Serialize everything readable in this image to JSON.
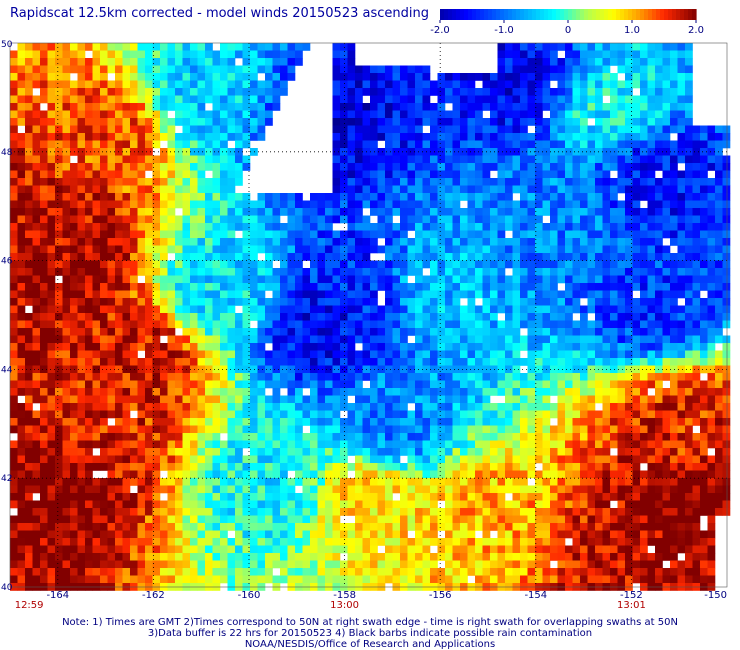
{
  "title": "Rapidscat 12.5km corrected - model winds 20150523 ascending",
  "notes": [
    "Note: 1) Times are GMT 2)Times correspond to 50N at right swath edge - time is right swath for overlapping swaths at 50N",
    "3)Data buffer is 22 hrs for 20150523 4) Black barbs indicate possible rain contamination",
    "NOAA/NESDIS/Office of Research and Applications"
  ],
  "chart_data": {
    "type": "heatmap",
    "title": "Rapidscat 12.5km corrected - model winds 20150523 ascending",
    "xlim": [
      -165,
      -150
    ],
    "ylim": [
      40,
      50
    ],
    "x_ticks": [
      -164,
      -162,
      -160,
      -158,
      -156,
      -154,
      -152,
      -150
    ],
    "x_tick_labels": [
      "-164",
      "-162",
      "-160",
      "-158",
      "-156",
      "-154",
      "-152",
      "-150"
    ],
    "y_ticks": [
      40,
      42,
      44,
      46,
      48,
      50
    ],
    "y_tick_labels": [
      "40",
      "42",
      "44",
      "46",
      "48",
      "50"
    ],
    "time_labels": [
      {
        "lon": -164.6,
        "text": "12:59"
      },
      {
        "lon": -158,
        "text": "13:00"
      },
      {
        "lon": -152,
        "text": "13:01"
      }
    ],
    "colorbar": {
      "range": [
        -2.0,
        2.0
      ],
      "ticks": [
        -2.0,
        -1.0,
        0,
        1.0,
        2.0
      ],
      "tick_labels": [
        "-2.0",
        "-1.0",
        "0",
        "1.0",
        "2.0"
      ]
    },
    "grid": true,
    "field_regions": [
      {
        "lon": -164.2,
        "lat": 46.5,
        "value": 1.8
      },
      {
        "lon": -163.8,
        "lat": 45.8,
        "value": 1.9
      },
      {
        "lon": -163,
        "lat": 48.3,
        "value": 1.4
      },
      {
        "lon": -164,
        "lat": 41.8,
        "value": 2.0
      },
      {
        "lon": -163,
        "lat": 43.0,
        "value": 1.6
      },
      {
        "lon": -162.3,
        "lat": 44.2,
        "value": 1.7
      },
      {
        "lon": -158.5,
        "lat": 48.5,
        "value": -1.7
      },
      {
        "lon": -158.5,
        "lat": 44.8,
        "value": -1.6
      },
      {
        "lon": -157.8,
        "lat": 45.5,
        "value": -1.4
      },
      {
        "lon": -154.3,
        "lat": 49.3,
        "value": -1.6
      },
      {
        "lon": -151.5,
        "lat": 47.5,
        "value": -1.5
      },
      {
        "lon": -151.5,
        "lat": 45.2,
        "value": -1.3
      },
      {
        "lon": -153.5,
        "lat": 46.8,
        "value": -0.9
      },
      {
        "lon": -156,
        "lat": 45.5,
        "value": -0.6
      },
      {
        "lon": -150.8,
        "lat": 41.5,
        "value": 2.0
      },
      {
        "lon": -152,
        "lat": 40.5,
        "value": 1.8
      },
      {
        "lon": -151,
        "lat": 43.0,
        "value": 1.6
      },
      {
        "lon": -155.2,
        "lat": 41.3,
        "value": 1.0
      },
      {
        "lon": -157.5,
        "lat": 41.6,
        "value": 0.8
      },
      {
        "lon": -159.5,
        "lat": 42.0,
        "value": -0.3
      },
      {
        "lon": -160.5,
        "lat": 45.5,
        "value": -0.4
      },
      {
        "lon": -157,
        "lat": 43.0,
        "value": -0.9
      },
      {
        "lon": -152.5,
        "lat": 48.8,
        "value": -0.3
      },
      {
        "lon": -160.8,
        "lat": 49.0,
        "value": -0.5
      }
    ]
  }
}
